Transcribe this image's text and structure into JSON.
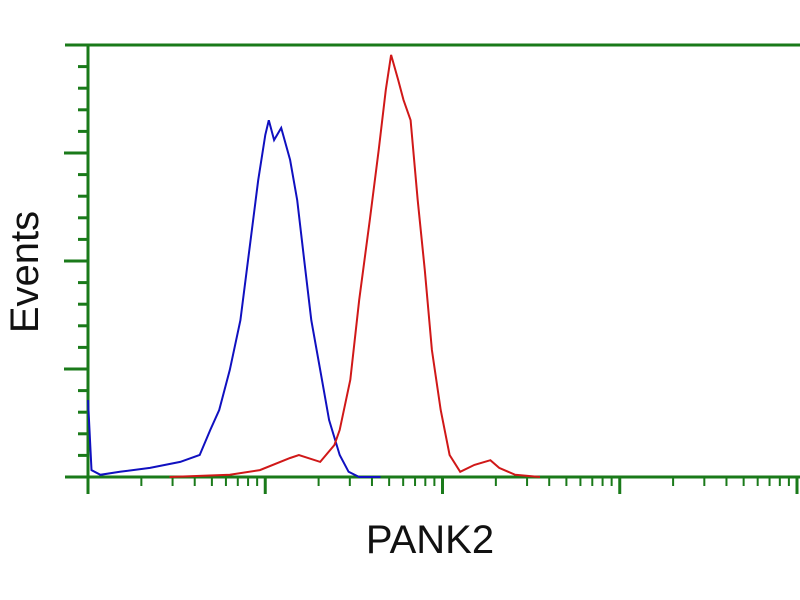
{
  "chart_data": {
    "type": "line",
    "title": "",
    "xlabel": "PANK2",
    "ylabel": "Events",
    "x_scale": "log",
    "x_decades": [
      0,
      4
    ],
    "ylim": [
      0,
      100
    ],
    "grid": false,
    "axis_color": "#1a7a1a",
    "series": [
      {
        "color": "#1010c0",
        "x": [
          0.0,
          0.02,
          0.07,
          0.18,
          0.35,
          0.52,
          0.63,
          0.69,
          0.74,
          0.8,
          0.86,
          0.91,
          0.96,
          1.0,
          1.02,
          1.05,
          1.09,
          1.14,
          1.18,
          1.22,
          1.26,
          1.31,
          1.36,
          1.42,
          1.47,
          1.53,
          1.65
        ],
        "y": [
          17.8,
          1.6,
          0.5,
          1.2,
          2.1,
          3.5,
          5.1,
          10.9,
          15.5,
          24.8,
          36.3,
          52.5,
          68.7,
          79.2,
          82.6,
          78.0,
          80.8,
          73.4,
          64.1,
          50.2,
          36.3,
          24.8,
          13.2,
          5.1,
          1.2,
          0,
          0
        ]
      },
      {
        "color": "#d01818",
        "x": [
          0.46,
          0.8,
          0.97,
          1.14,
          1.19,
          1.31,
          1.39,
          1.42,
          1.48,
          1.53,
          1.59,
          1.64,
          1.68,
          1.71,
          1.75,
          1.78,
          1.82,
          1.86,
          1.9,
          1.94,
          1.99,
          2.04,
          2.1,
          2.18,
          2.27,
          2.32,
          2.41,
          2.55
        ],
        "y": [
          0,
          0.5,
          1.6,
          4.4,
          5.1,
          3.5,
          7.4,
          10.9,
          22.5,
          41.0,
          59.5,
          75.7,
          89.6,
          97.7,
          91.9,
          87.3,
          82.6,
          64.1,
          47.9,
          29.4,
          15.5,
          5.1,
          1.2,
          2.8,
          3.9,
          2.1,
          0.5,
          0
        ]
      }
    ]
  }
}
